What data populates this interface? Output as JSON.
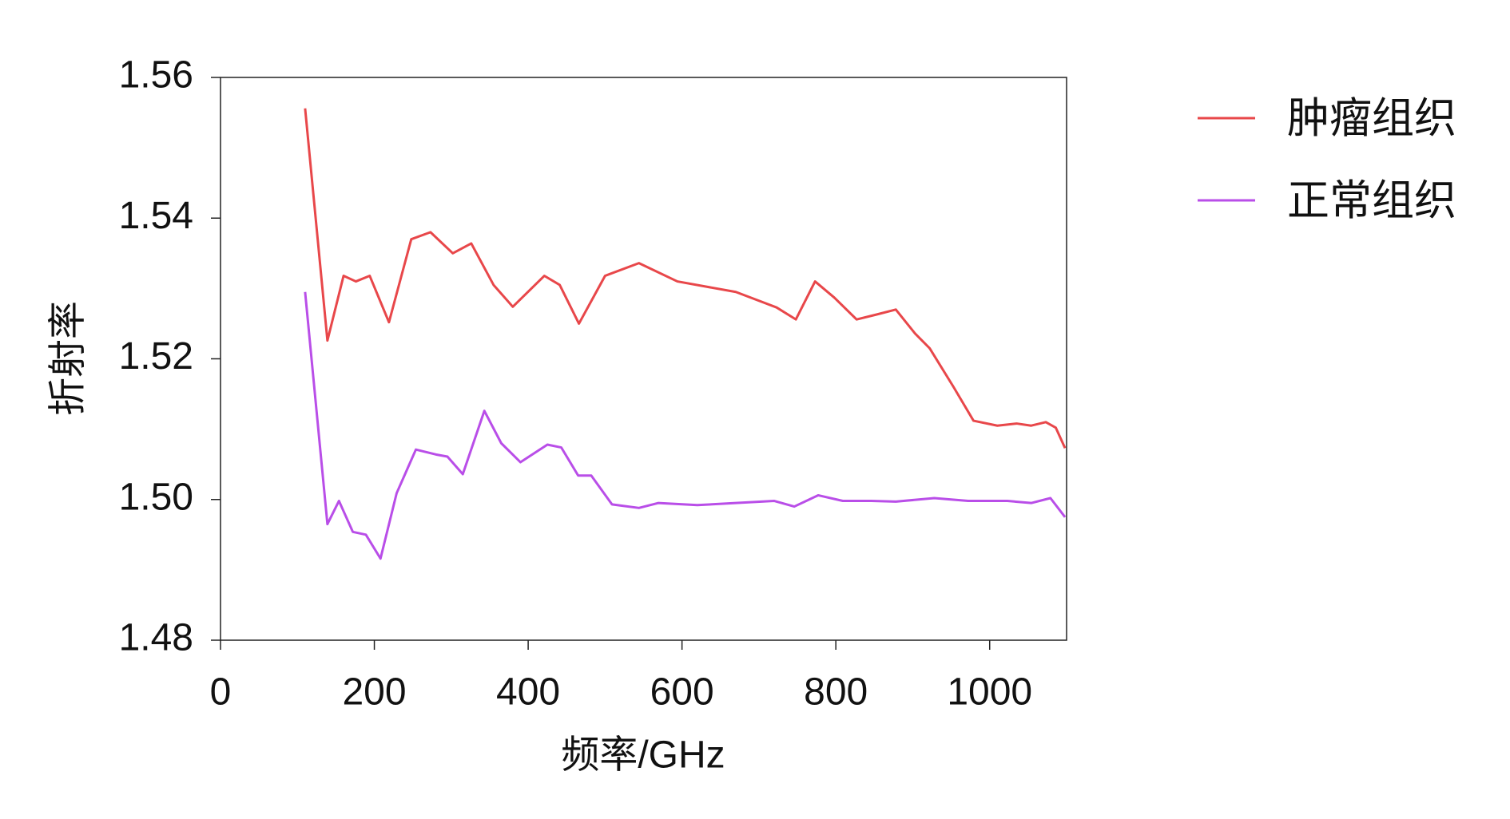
{
  "chart_data": {
    "type": "line",
    "x_label": "频率/GHz",
    "y_label": "折射率",
    "xlim": [
      0,
      1100
    ],
    "xticks": [
      0,
      200,
      400,
      600,
      800,
      1000
    ],
    "ylim": [
      1.48,
      1.56
    ],
    "yticks": [
      {
        "value": 1.48,
        "label": "1.48"
      },
      {
        "value": 1.5,
        "label": "1.50"
      },
      {
        "value": 1.52,
        "label": "1.52"
      },
      {
        "value": 1.54,
        "label": "1.54"
      },
      {
        "value": 1.56,
        "label": "1.56"
      }
    ],
    "legend": "right",
    "series": [
      {
        "name": "肿瘤组织",
        "color": "#e8474a",
        "x": [
          110,
          139,
          160,
          176,
          194,
          219,
          248,
          273,
          302,
          326,
          355,
          380,
          421,
          441,
          466,
          500,
          544,
          594,
          670,
          723,
          748,
          773,
          798,
          827,
          853,
          878,
          903,
          922,
          953,
          979,
          1010,
          1035,
          1054,
          1073,
          1086,
          1098
        ],
        "values": [
          1.5556,
          1.5226,
          1.5318,
          1.531,
          1.5318,
          1.5252,
          1.537,
          1.538,
          1.535,
          1.5364,
          1.5305,
          1.5274,
          1.5318,
          1.5305,
          1.525,
          1.5318,
          1.5336,
          1.531,
          1.5295,
          1.5273,
          1.5256,
          1.531,
          1.5287,
          1.5256,
          1.5263,
          1.527,
          1.5236,
          1.5215,
          1.516,
          1.5112,
          1.5105,
          1.5108,
          1.5105,
          1.511,
          1.5102,
          1.5073
        ]
      },
      {
        "name": "正常组织",
        "color": "#b94ee8",
        "x": [
          110,
          139,
          154,
          172,
          189,
          208,
          229,
          254,
          280,
          295,
          315,
          343,
          365,
          390,
          425,
          443,
          465,
          482,
          509,
          544,
          569,
          620,
          670,
          720,
          746,
          777,
          809,
          846,
          878,
          928,
          972,
          1023,
          1054,
          1079,
          1098
        ],
        "values": [
          1.5295,
          1.4965,
          1.4998,
          1.4954,
          1.495,
          1.4916,
          1.5009,
          1.5071,
          1.5064,
          1.5061,
          1.5036,
          1.5126,
          1.508,
          1.5053,
          1.5078,
          1.5074,
          1.5034,
          1.5034,
          1.4993,
          1.4988,
          1.4995,
          1.4992,
          1.4995,
          1.4998,
          1.499,
          1.5006,
          1.4998,
          1.4998,
          1.4997,
          1.5002,
          1.4998,
          1.4998,
          1.4995,
          1.5002,
          1.4975
        ]
      }
    ]
  }
}
